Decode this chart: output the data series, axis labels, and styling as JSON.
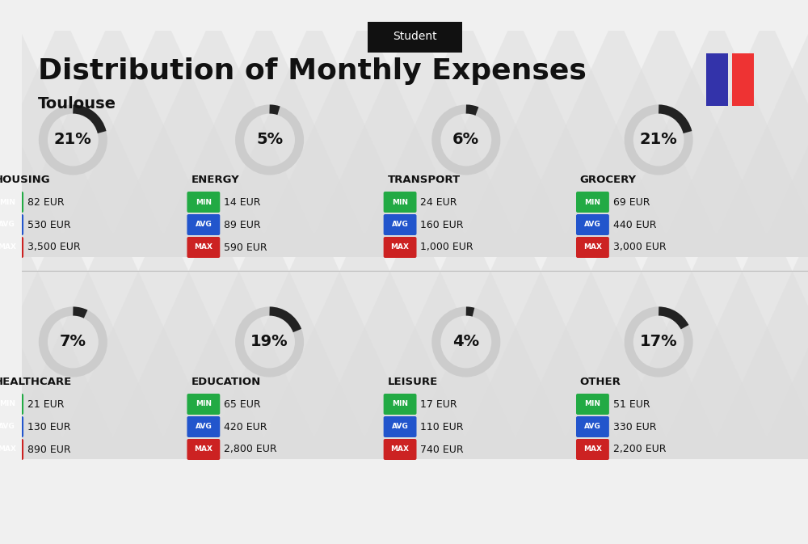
{
  "title": "Distribution of Monthly Expenses",
  "subtitle": "Student",
  "city": "Toulouse",
  "bg_color": "#f0f0f0",
  "flag_colors": [
    "#3333aa",
    "#ee3333"
  ],
  "categories": [
    {
      "name": "HOUSING",
      "pct": 21,
      "min": "82 EUR",
      "avg": "530 EUR",
      "max": "3,500 EUR",
      "row": 0,
      "col": 0
    },
    {
      "name": "ENERGY",
      "pct": 5,
      "min": "14 EUR",
      "avg": "89 EUR",
      "max": "590 EUR",
      "row": 0,
      "col": 1
    },
    {
      "name": "TRANSPORT",
      "pct": 6,
      "min": "24 EUR",
      "avg": "160 EUR",
      "max": "1,000 EUR",
      "row": 0,
      "col": 2
    },
    {
      "name": "GROCERY",
      "pct": 21,
      "min": "69 EUR",
      "avg": "440 EUR",
      "max": "3,000 EUR",
      "row": 0,
      "col": 3
    },
    {
      "name": "HEALTHCARE",
      "pct": 7,
      "min": "21 EUR",
      "avg": "130 EUR",
      "max": "890 EUR",
      "row": 1,
      "col": 0
    },
    {
      "name": "EDUCATION",
      "pct": 19,
      "min": "65 EUR",
      "avg": "420 EUR",
      "max": "2,800 EUR",
      "row": 1,
      "col": 1
    },
    {
      "name": "LEISURE",
      "pct": 4,
      "min": "17 EUR",
      "avg": "110 EUR",
      "max": "740 EUR",
      "row": 1,
      "col": 2
    },
    {
      "name": "OTHER",
      "pct": 17,
      "min": "51 EUR",
      "avg": "330 EUR",
      "max": "2,200 EUR",
      "row": 1,
      "col": 3
    }
  ],
  "min_color": "#22aa44",
  "avg_color": "#2255cc",
  "max_color": "#cc2222",
  "label_color": "#ffffff",
  "text_color": "#111111",
  "circle_filled_color": "#222222",
  "circle_empty_color": "#cccccc"
}
